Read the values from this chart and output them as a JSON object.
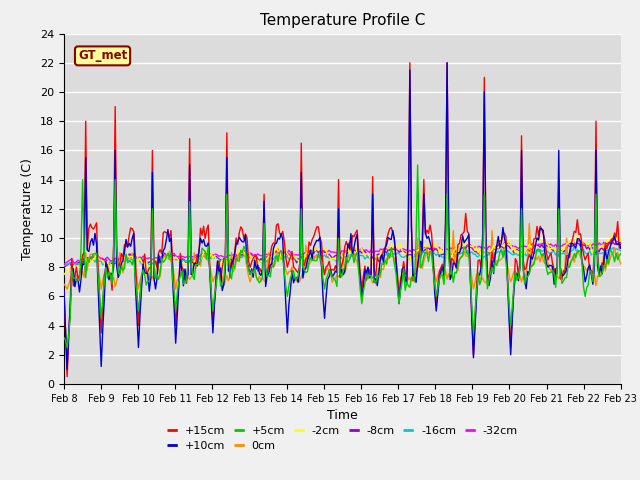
{
  "title": "Temperature Profile C",
  "xlabel": "Time",
  "ylabel": "Temperature (C)",
  "ylim": [
    0,
    24
  ],
  "yticks": [
    0,
    2,
    4,
    6,
    8,
    10,
    12,
    14,
    16,
    18,
    20,
    22,
    24
  ],
  "x_labels": [
    "Feb 8",
    "Feb 9",
    "Feb 10",
    "Feb 11",
    "Feb 12",
    "Feb 13",
    "Feb 14",
    "Feb 15",
    "Feb 16",
    "Feb 17",
    "Feb 18",
    "Feb 19",
    "Feb 20",
    "Feb 21",
    "Feb 22",
    "Feb 23"
  ],
  "annotation": "GT_met",
  "annotation_color": "#8B0000",
  "annotation_bg": "#FFFF99",
  "series_colors": {
    "+15cm": "#FF0000",
    "+10cm": "#0000CC",
    "+5cm": "#00CC00",
    "0cm": "#FF8C00",
    "-2cm": "#FFFF00",
    "-8cm": "#9400D3",
    "-16cm": "#00CCCC",
    "-32cm": "#FF00FF"
  },
  "bg_color": "#DCDCDC",
  "fig_bg_color": "#F0F0F0",
  "grid_color": "#FFFFFF"
}
